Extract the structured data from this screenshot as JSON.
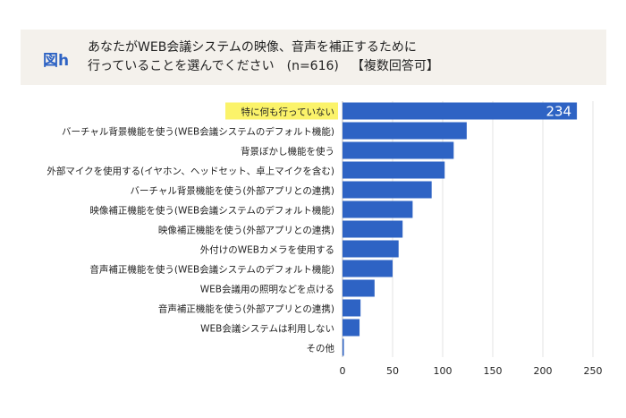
{
  "header": {
    "figure_label": "図h",
    "title_line1": "あなたがWEB会議システムの映像、音声を補正するために",
    "title_line2": "行っていることを選んでください",
    "sample": "(n=616)",
    "note": "【複数回答可】"
  },
  "chart_data": {
    "type": "bar",
    "orientation": "horizontal",
    "title": "あなたがWEB会議システムの映像、音声を補正するために行っていることを選んでください (n=616) 【複数回答可】",
    "categories": [
      "特に何も行っていない",
      "バーチャル背景機能を使う(WEB会議システムのデフォルト機能)",
      "背景ぼかし機能を使う",
      "外部マイクを使用する(イヤホン、ヘッドセット、卓上マイクを含む)",
      "バーチャル背景機能を使う(外部アプリとの連携)",
      "映像補正機能を使う(WEB会議システムのデフォルト機能)",
      "映像補正機能を使う(外部アプリとの連携)",
      "外付けのWEBカメラを使用する",
      "音声補正機能を使う(WEB会議システムのデフォルト機能)",
      "WEB会議用の照明などを点ける",
      "音声補正機能を使う(外部アプリとの連携)",
      "WEB会議システムは利用しない",
      "その他"
    ],
    "values": [
      234,
      124,
      111,
      102,
      89,
      70,
      60,
      56,
      50,
      32,
      18,
      17,
      1
    ],
    "data_labels": {
      "0": "234"
    },
    "highlight_index": 0,
    "xlim": [
      0,
      250
    ],
    "xticks": [
      "0",
      "50",
      "100",
      "150",
      "200",
      "250"
    ],
    "xtick_values": [
      0,
      50,
      100,
      150,
      200,
      250
    ],
    "grid": true,
    "colors": {
      "bar": "#2e63c4",
      "highlight_label_bg": "#fbf36a",
      "grid": "#e3e3e3"
    }
  }
}
